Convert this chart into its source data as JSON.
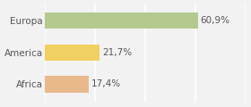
{
  "categories": [
    "Africa",
    "America",
    "Europa"
  ],
  "values": [
    17.4,
    21.7,
    60.9
  ],
  "labels": [
    "17,4%",
    "21,7%",
    "60,9%"
  ],
  "bar_colors": [
    "#e8b98a",
    "#f0d060",
    "#b5c98e"
  ],
  "background_color": "#f2f2f2",
  "xlim": [
    0,
    80
  ],
  "bar_height": 0.52,
  "label_fontsize": 7.5,
  "tick_fontsize": 7.5
}
